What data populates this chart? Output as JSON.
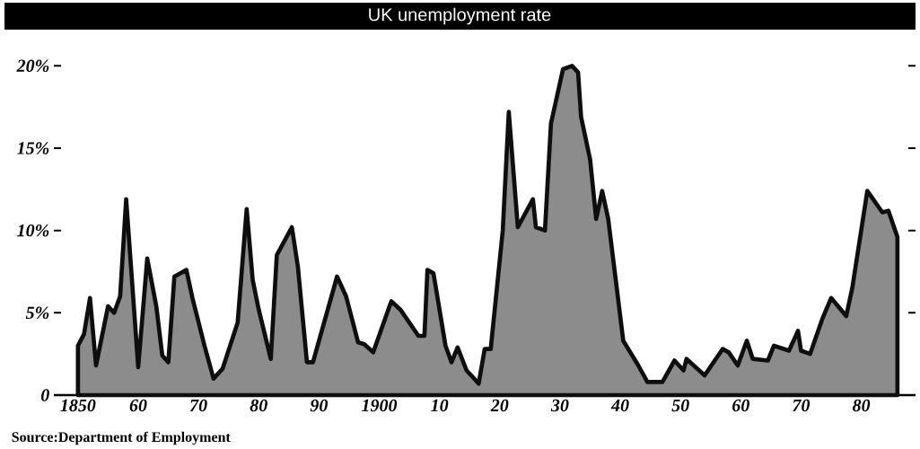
{
  "chart_data": {
    "type": "area",
    "title": "UK   unemployment   rate",
    "annotations": [
      "Source:Department of Employment"
    ],
    "x": [
      1850,
      1851,
      1852,
      1853,
      1855,
      1856,
      1857,
      1858,
      1860,
      1861.5,
      1863,
      1864,
      1865,
      1866,
      1868,
      1869,
      1871,
      1872.5,
      1874,
      1876.5,
      1878,
      1879,
      1880,
      1882,
      1883,
      1885.5,
      1886.5,
      1888,
      1889,
      1893,
      1894.5,
      1896.5,
      1897.5,
      1899,
      1902,
      1903.5,
      1906.5,
      1907.5,
      1908,
      1909,
      1911,
      1912,
      1913,
      1914.5,
      1916.5,
      1917.5,
      1918.5,
      1920.5,
      1921.5,
      1923,
      1925.5,
      1926,
      1927.5,
      1928.5,
      1930.5,
      1932,
      1933,
      1933.5,
      1935,
      1936,
      1937,
      1938,
      1940.5,
      1943,
      1944.5,
      1947,
      1949,
      1950.5,
      1951,
      1954,
      1957,
      1958,
      1959.5,
      1961,
      1962,
      1964.5,
      1965.5,
      1968,
      1969.5,
      1970,
      1971.5,
      1973.5,
      1975,
      1977.5,
      1978.5,
      1981,
      1983.5,
      1984.5,
      1986
    ],
    "series": [
      {
        "color": "#8c8c8c",
        "values": [
          3.0,
          3.7,
          5.9,
          1.8,
          5.4,
          5.0,
          6.0,
          11.9,
          1.7,
          8.3,
          5.4,
          2.4,
          2.0,
          7.2,
          7.6,
          5.9,
          3.0,
          1.0,
          1.6,
          4.4,
          11.3,
          7.0,
          5.2,
          2.2,
          8.5,
          10.2,
          7.8,
          2.0,
          2.0,
          7.2,
          6.0,
          3.2,
          3.1,
          2.6,
          5.7,
          5.2,
          3.6,
          3.6,
          7.6,
          7.4,
          3.0,
          2.0,
          2.9,
          1.5,
          0.7,
          2.8,
          2.8,
          10.0,
          17.2,
          10.2,
          11.9,
          10.2,
          10.0,
          16.5,
          19.8,
          20.0,
          19.6,
          16.9,
          14.3,
          10.7,
          12.4,
          10.7,
          3.3,
          1.8,
          0.8,
          0.8,
          2.1,
          1.5,
          2.2,
          1.2,
          2.8,
          2.6,
          1.8,
          3.3,
          2.2,
          2.1,
          3.0,
          2.7,
          3.9,
          2.7,
          2.5,
          4.6,
          5.9,
          4.8,
          6.5,
          12.4,
          11.1,
          11.2,
          9.6
        ]
      }
    ],
    "xlim": [
      1846,
      1989
    ],
    "ylim": [
      0,
      20
    ],
    "xticks": [
      {
        "value": 1850,
        "label": "1850"
      },
      {
        "value": 1855,
        "label": null
      },
      {
        "value": 1860,
        "label": "60"
      },
      {
        "value": 1865,
        "label": null
      },
      {
        "value": 1870,
        "label": "70"
      },
      {
        "value": 1875,
        "label": null
      },
      {
        "value": 1880,
        "label": "80"
      },
      {
        "value": 1885,
        "label": null
      },
      {
        "value": 1890,
        "label": "90"
      },
      {
        "value": 1895,
        "label": null
      },
      {
        "value": 1900,
        "label": "1900"
      },
      {
        "value": 1905,
        "label": null
      },
      {
        "value": 1910,
        "label": "10"
      },
      {
        "value": 1915,
        "label": null
      },
      {
        "value": 1920,
        "label": "20"
      },
      {
        "value": 1925,
        "label": null
      },
      {
        "value": 1930,
        "label": "30"
      },
      {
        "value": 1935,
        "label": null
      },
      {
        "value": 1940,
        "label": "40"
      },
      {
        "value": 1945,
        "label": null
      },
      {
        "value": 1950,
        "label": "50"
      },
      {
        "value": 1955,
        "label": null
      },
      {
        "value": 1960,
        "label": "60"
      },
      {
        "value": 1965,
        "label": null
      },
      {
        "value": 1970,
        "label": "70"
      },
      {
        "value": 1975,
        "label": null
      },
      {
        "value": 1980,
        "label": "80"
      },
      {
        "value": 1985,
        "label": null
      }
    ],
    "yticks": [
      {
        "value": 0,
        "label": "0"
      },
      {
        "value": 5,
        "label": "5%"
      },
      {
        "value": 10,
        "label": "10%"
      },
      {
        "value": 15,
        "label": "15%"
      },
      {
        "value": 20,
        "label": "20%"
      }
    ]
  }
}
